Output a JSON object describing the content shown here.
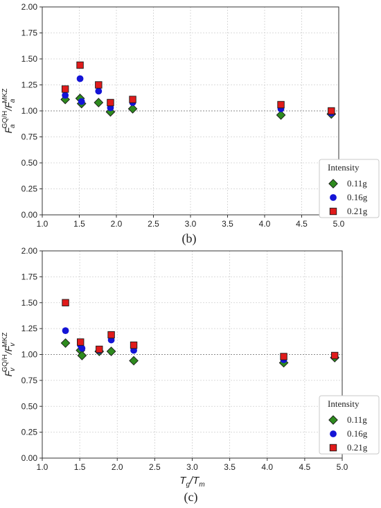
{
  "chart_data": [
    {
      "type": "scatter",
      "ylabel": "F_a^{GQ/H}/F_a^{MKZ}",
      "ylabel_parts": {
        "base": "F",
        "sub": "a",
        "sup1": "GQ/H",
        "slash": "/F",
        "sub2": "a",
        "sup2": "MKZ"
      },
      "xlabel": "",
      "caption": "(b)",
      "xlim": [
        1.0,
        5.0
      ],
      "ylim": [
        0.0,
        2.0
      ],
      "xticks": [
        "1.0",
        "1.5",
        "2.0",
        "2.5",
        "3.0",
        "3.5",
        "4.0",
        "4.5",
        "5.0"
      ],
      "yticks": [
        "0.00",
        "0.25",
        "0.50",
        "0.75",
        "1.00",
        "1.25",
        "1.50",
        "1.75",
        "2.00"
      ],
      "grid": true,
      "reference_line": 1.0,
      "legend": {
        "title": "Intensity",
        "placement": "lower-right"
      },
      "series": [
        {
          "name": "0.11g",
          "marker": "diamond",
          "color": "#2e8b1e",
          "x": [
            1.31,
            1.51,
            1.53,
            1.76,
            1.92,
            2.22,
            4.22,
            4.9
          ],
          "y": [
            1.11,
            1.12,
            1.07,
            1.08,
            0.99,
            1.02,
            0.96,
            0.97
          ]
        },
        {
          "name": "0.16g",
          "marker": "circle",
          "color": "#1414d6",
          "x": [
            1.31,
            1.51,
            1.53,
            1.76,
            1.92,
            2.22,
            4.22,
            4.9
          ],
          "y": [
            1.15,
            1.31,
            1.09,
            1.19,
            1.03,
            1.08,
            1.02,
            0.98
          ]
        },
        {
          "name": "0.21g",
          "marker": "square",
          "color": "#e01b1b",
          "x": [
            1.31,
            1.51,
            1.76,
            1.92,
            2.22,
            4.22,
            4.9
          ],
          "y": [
            1.21,
            1.44,
            1.25,
            1.08,
            1.11,
            1.06,
            1.0
          ]
        }
      ]
    },
    {
      "type": "scatter",
      "ylabel": "F_v^{GQ/H}/F_v^{MKZ}",
      "ylabel_parts": {
        "base": "F",
        "sub": "v",
        "sup1": "GQ/H",
        "slash": "/F",
        "sub2": "v",
        "sup2": "MKZ"
      },
      "xlabel": "T_g/T_m",
      "xlabel_parts": {
        "t1": "T",
        "s1": "g",
        "mid": "/T",
        "s2": "m"
      },
      "caption": "(c)",
      "xlim": [
        1.0,
        5.0
      ],
      "ylim": [
        0.0,
        2.0
      ],
      "xticks": [
        "1.0",
        "1.5",
        "2.0",
        "2.5",
        "3.0",
        "3.5",
        "4.0",
        "4.5",
        "5.0"
      ],
      "yticks": [
        "0.00",
        "0.25",
        "0.50",
        "0.75",
        "1.00",
        "1.25",
        "1.50",
        "1.75",
        "2.00"
      ],
      "grid": true,
      "reference_line": 1.0,
      "legend": {
        "title": "Intensity",
        "placement": "lower-right"
      },
      "series": [
        {
          "name": "0.11g",
          "marker": "diamond",
          "color": "#2e8b1e",
          "x": [
            1.31,
            1.51,
            1.53,
            1.76,
            1.92,
            2.22,
            4.22,
            4.9
          ],
          "y": [
            1.11,
            1.04,
            0.99,
            1.03,
            1.03,
            0.94,
            0.92,
            0.97
          ]
        },
        {
          "name": "0.16g",
          "marker": "circle",
          "color": "#1414d6",
          "x": [
            1.31,
            1.51,
            1.53,
            1.76,
            1.92,
            2.22,
            4.22,
            4.9
          ],
          "y": [
            1.23,
            1.09,
            1.06,
            1.04,
            1.14,
            1.04,
            0.95,
            0.99
          ]
        },
        {
          "name": "0.21g",
          "marker": "square",
          "color": "#e01b1b",
          "x": [
            1.31,
            1.51,
            1.76,
            1.92,
            2.22,
            4.22,
            4.9
          ],
          "y": [
            1.5,
            1.12,
            1.05,
            1.19,
            1.09,
            0.98,
            0.99
          ]
        }
      ]
    }
  ]
}
